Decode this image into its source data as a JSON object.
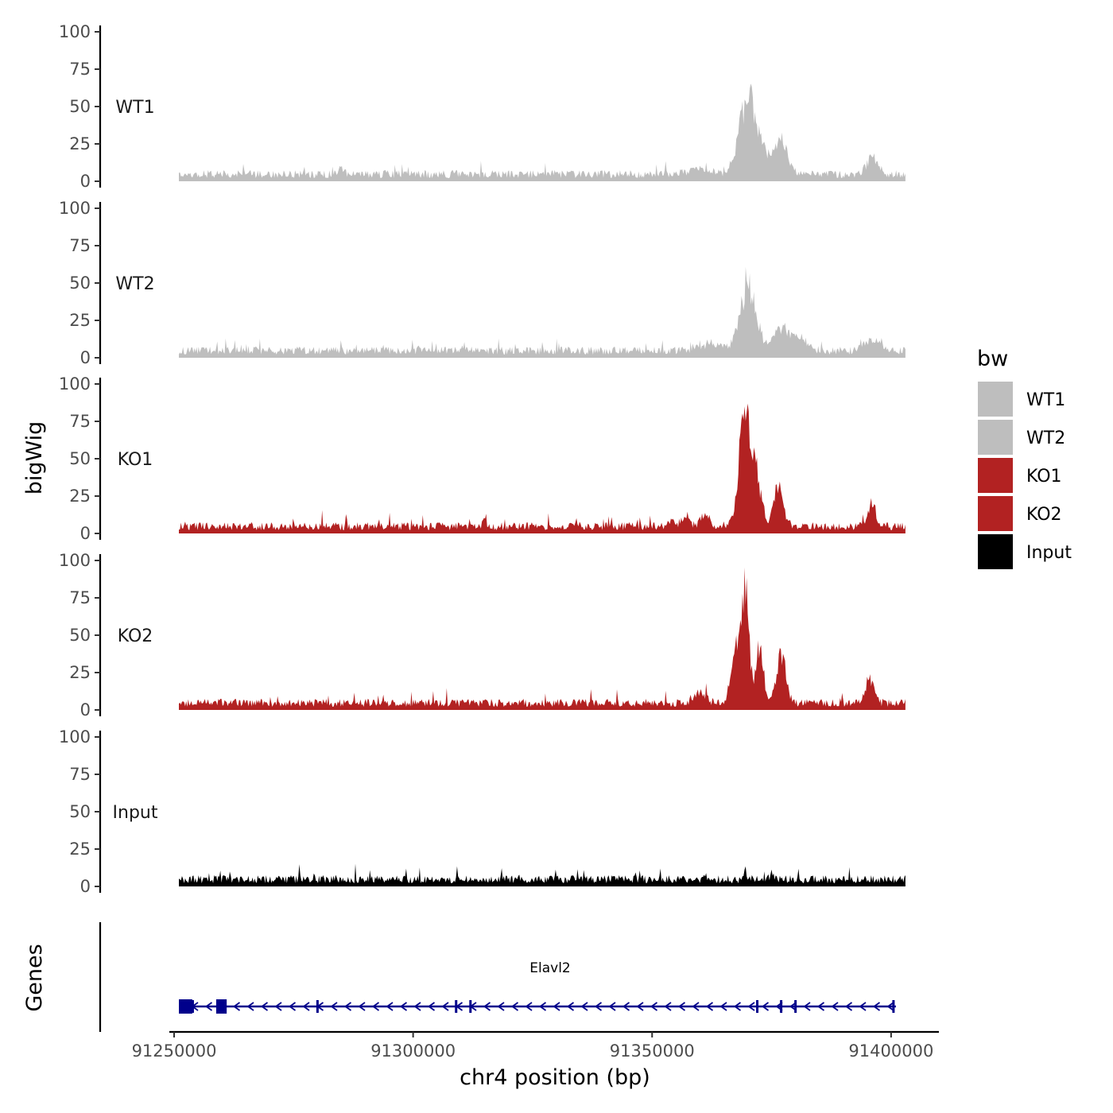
{
  "chart_data": {
    "type": "area",
    "xlabel": "chr4 position (bp)",
    "ylabel": "bigWig",
    "gene_track_label": "Genes",
    "xlim": [
      91249000,
      91410000
    ],
    "data_range": [
      91251000,
      91403000
    ],
    "x_ticks": [
      91250000,
      91300000,
      91350000,
      91400000
    ],
    "x_tick_labels": [
      "91250000",
      "91300000",
      "91350000",
      "91400000"
    ],
    "ylim": [
      0,
      100
    ],
    "y_ticks": [
      0,
      25,
      50,
      75,
      100
    ],
    "y_tick_labels": [
      "0",
      "25",
      "50",
      "75",
      "100"
    ],
    "legend": {
      "title": "bw",
      "entries": [
        {
          "label": "WT1",
          "color": "#bebebe"
        },
        {
          "label": "WT2",
          "color": "#bebebe"
        },
        {
          "label": "KO1",
          "color": "#b22222"
        },
        {
          "label": "KO2",
          "color": "#b22222"
        },
        {
          "label": "Input",
          "color": "#000000"
        }
      ]
    },
    "series": [
      {
        "name": "WT1",
        "color": "#bebebe",
        "baseline": 6,
        "peaks": [
          [
            91370000,
            55,
            1800
          ],
          [
            91377000,
            25,
            1300
          ],
          [
            91373500,
            10,
            1500
          ],
          [
            91396000,
            11,
            1200
          ],
          [
            91360000,
            5,
            2000
          ],
          [
            91285000,
            5,
            500
          ]
        ]
      },
      {
        "name": "WT2",
        "color": "#bebebe",
        "baseline": 6,
        "peaks": [
          [
            91370000,
            45,
            1700
          ],
          [
            91377000,
            16,
            1800
          ],
          [
            91381000,
            8,
            1500
          ],
          [
            91396000,
            8,
            1500
          ],
          [
            91362000,
            5,
            2000
          ]
        ]
      },
      {
        "name": "KO1",
        "color": "#b22222",
        "baseline": 6,
        "peaks": [
          [
            91369500,
            82,
            1200
          ],
          [
            91372000,
            30,
            1000
          ],
          [
            91376500,
            30,
            1000
          ],
          [
            91396000,
            17,
            800
          ],
          [
            91361000,
            10,
            900
          ],
          [
            91357000,
            8,
            800
          ],
          [
            91315000,
            8,
            300
          ],
          [
            91354000,
            5,
            700
          ]
        ]
      },
      {
        "name": "KO2",
        "color": "#b22222",
        "baseline": 6,
        "peaks": [
          [
            91369500,
            80,
            800
          ],
          [
            91367500,
            38,
            1000
          ],
          [
            91372500,
            45,
            700
          ],
          [
            91377000,
            33,
            1000
          ],
          [
            91395500,
            17,
            900
          ],
          [
            91360000,
            8,
            1200
          ]
        ]
      },
      {
        "name": "Input",
        "color": "#000000",
        "baseline": 6,
        "peaks": [
          [
            91369500,
            6,
            300
          ],
          [
            91361000,
            5,
            300
          ],
          [
            91375000,
            4,
            400
          ]
        ]
      }
    ],
    "gene": {
      "name": "Elavl2",
      "start": 91251000,
      "end": 91401000,
      "strand": "-",
      "color": "#00008b",
      "exons": [
        [
          91251000,
          91253800
        ],
        [
          91258800,
          91261000
        ]
      ],
      "small_exons": [
        91253900,
        91280000,
        91309000,
        91312000,
        91372000,
        91377000,
        91380000,
        91400500
      ]
    }
  }
}
